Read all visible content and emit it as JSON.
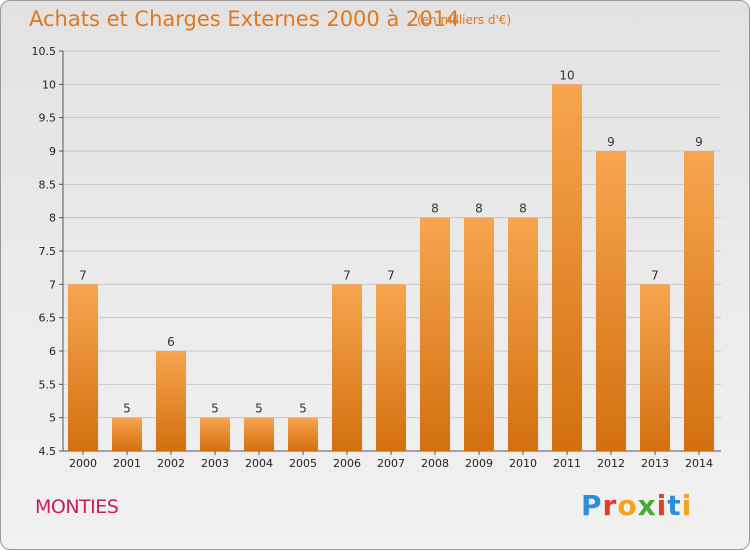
{
  "header": {
    "title": "Achats et Charges Externes 2000 à 2014",
    "subtitle": "(en milliers d'€)"
  },
  "footer": {
    "commune": "MONTIES",
    "logo_text": "Proxiti"
  },
  "colors": {
    "bar_light": "#f7a54f",
    "bar_dark": "#d2700f",
    "title": "#e0781e",
    "commune": "#c81e5a"
  },
  "chart_data": {
    "type": "bar",
    "title": "Achats et Charges Externes 2000 à 2014",
    "subtitle": "(en milliers d'€)",
    "categories": [
      "2000",
      "2001",
      "2002",
      "2003",
      "2004",
      "2005",
      "2006",
      "2007",
      "2008",
      "2009",
      "2010",
      "2011",
      "2012",
      "2013",
      "2014"
    ],
    "values": [
      7,
      5,
      6,
      5,
      5,
      5,
      7,
      7,
      8,
      8,
      8,
      10,
      9,
      7,
      9
    ],
    "labels": [
      "7",
      "5",
      "6",
      "5",
      "5",
      "5",
      "7",
      "7",
      "8",
      "8",
      "8",
      "10",
      "9",
      "7",
      "9"
    ],
    "ylim": [
      4.5,
      10.5
    ],
    "yticks": [
      "4.5",
      "5",
      "5.5",
      "6",
      "6.5",
      "7",
      "7.5",
      "8",
      "8.5",
      "9",
      "9.5",
      "10",
      "10.5"
    ],
    "grid": true,
    "xlabel": "",
    "ylabel": ""
  }
}
